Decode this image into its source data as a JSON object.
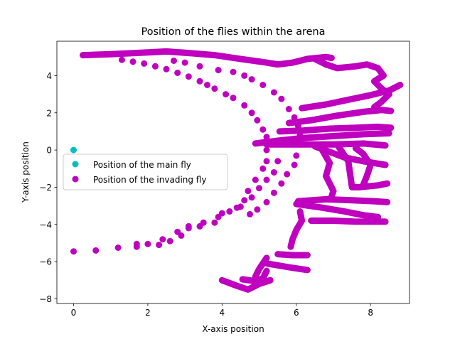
{
  "chart_data": {
    "type": "scatter",
    "title": "Position of the flies within the arena",
    "xlabel": "X-axis position",
    "ylabel": "Y-axis position",
    "xlim": [
      -0.45,
      9.05
    ],
    "ylim": [
      -8.25,
      5.85
    ],
    "xticks": [
      0,
      2,
      4,
      6,
      8
    ],
    "yticks": [
      -8,
      -6,
      -4,
      -2,
      0,
      2,
      4
    ],
    "legend_position": "center-left",
    "grid": false,
    "series": [
      {
        "name": "Position of the main fly",
        "color": "#00bfbf",
        "points": [
          [
            0,
            0
          ]
        ]
      },
      {
        "name": "Position of the invading fly",
        "color": "#bf00bf",
        "paths": [
          [
            [
              0.25,
              5.1
            ],
            [
              1.0,
              5.15
            ],
            [
              2.0,
              5.25
            ],
            [
              2.5,
              5.3
            ],
            [
              3.2,
              5.2
            ],
            [
              3.8,
              5.1
            ],
            [
              4.5,
              4.9
            ],
            [
              5.2,
              4.7
            ],
            [
              5.5,
              4.6
            ],
            [
              5.9,
              4.7
            ],
            [
              6.3,
              4.9
            ],
            [
              6.8,
              5.0
            ],
            [
              6.95,
              4.95
            ]
          ],
          [
            [
              6.5,
              4.9
            ],
            [
              6.8,
              4.6
            ],
            [
              7.1,
              4.4
            ],
            [
              7.6,
              4.5
            ],
            [
              7.9,
              4.6
            ],
            [
              8.2,
              4.4
            ],
            [
              8.35,
              4.0
            ],
            [
              8.1,
              3.7
            ],
            [
              8.3,
              3.3
            ],
            [
              8.5,
              3.0
            ],
            [
              8.3,
              2.6
            ],
            [
              8.1,
              2.3
            ]
          ],
          [
            [
              6.15,
              2.25
            ],
            [
              6.8,
              2.45
            ],
            [
              7.4,
              2.7
            ],
            [
              8.0,
              2.95
            ],
            [
              8.5,
              3.2
            ],
            [
              8.8,
              3.5
            ]
          ],
          [
            [
              5.8,
              1.45
            ],
            [
              6.4,
              1.6
            ],
            [
              7.1,
              1.85
            ],
            [
              7.8,
              2.05
            ],
            [
              8.3,
              2.15
            ],
            [
              8.55,
              2.1
            ]
          ],
          [
            [
              5.55,
              1.0
            ],
            [
              6.2,
              1.05
            ],
            [
              6.9,
              1.15
            ],
            [
              7.6,
              1.2
            ],
            [
              8.2,
              1.25
            ],
            [
              8.55,
              1.2
            ]
          ],
          [
            [
              4.9,
              0.35
            ],
            [
              5.5,
              0.5
            ],
            [
              6.2,
              0.65
            ],
            [
              7.0,
              0.75
            ],
            [
              7.8,
              0.85
            ],
            [
              8.5,
              0.9
            ]
          ],
          [
            [
              5.2,
              0.3
            ],
            [
              6.1,
              0.3
            ],
            [
              7.0,
              0.3
            ],
            [
              7.8,
              0.35
            ],
            [
              8.4,
              0.25
            ]
          ],
          [
            [
              6.5,
              0.2
            ],
            [
              6.9,
              -0.1
            ],
            [
              7.3,
              -0.4
            ],
            [
              7.8,
              -0.6
            ],
            [
              8.4,
              -0.8
            ]
          ],
          [
            [
              6.7,
              0.0
            ],
            [
              6.9,
              -0.7
            ],
            [
              6.8,
              -1.4
            ],
            [
              7.0,
              -2.2
            ],
            [
              6.95,
              -2.5
            ]
          ],
          [
            [
              7.1,
              0.3
            ],
            [
              7.4,
              -0.6
            ],
            [
              7.45,
              -1.3
            ],
            [
              7.5,
              -2.0
            ],
            [
              7.7,
              -2.0
            ],
            [
              8.2,
              -1.9
            ],
            [
              8.45,
              -1.8
            ]
          ],
          [
            [
              7.6,
              0.1
            ],
            [
              7.8,
              -0.2
            ],
            [
              8.0,
              -0.8
            ],
            [
              7.9,
              -1.4
            ],
            [
              7.8,
              -1.9
            ]
          ],
          [
            [
              6.05,
              -2.75
            ],
            [
              6.8,
              -2.65
            ],
            [
              7.5,
              -2.7
            ],
            [
              8.1,
              -2.75
            ],
            [
              8.45,
              -2.8
            ]
          ],
          [
            [
              6.0,
              -2.9
            ],
            [
              6.7,
              -3.1
            ],
            [
              7.3,
              -3.3
            ],
            [
              7.8,
              -3.5
            ],
            [
              8.2,
              -3.6
            ]
          ],
          [
            [
              6.1,
              -3.3
            ],
            [
              6.15,
              -3.8
            ],
            [
              6.0,
              -4.3
            ],
            [
              5.9,
              -4.8
            ],
            [
              5.85,
              -5.2
            ]
          ],
          [
            [
              6.4,
              -3.8
            ],
            [
              7.0,
              -3.8
            ],
            [
              7.6,
              -3.85
            ],
            [
              8.1,
              -3.85
            ],
            [
              8.4,
              -3.85
            ]
          ],
          [
            [
              5.5,
              -5.6
            ],
            [
              5.9,
              -5.65
            ],
            [
              6.3,
              -5.65
            ]
          ],
          [
            [
              5.2,
              -6.1
            ],
            [
              5.8,
              -6.3
            ],
            [
              6.3,
              -6.45
            ]
          ],
          [
            [
              5.2,
              -5.8
            ],
            [
              5.0,
              -6.4
            ],
            [
              4.9,
              -6.8
            ]
          ],
          [
            [
              4.0,
              -7.0
            ],
            [
              4.4,
              -7.3
            ],
            [
              4.7,
              -7.5
            ],
            [
              5.0,
              -7.2
            ],
            [
              5.3,
              -7.0
            ]
          ],
          [
            [
              4.55,
              -6.95
            ],
            [
              4.9,
              -7.05
            ],
            [
              5.1,
              -6.9
            ],
            [
              5.2,
              -6.5
            ]
          ]
        ],
        "points": [
          [
            0,
            -5.45
          ],
          [
            0.6,
            -5.4
          ],
          [
            1.2,
            -5.25
          ],
          [
            1.7,
            -5.2
          ],
          [
            2.0,
            -5.05
          ],
          [
            2.4,
            -4.8
          ],
          [
            2.8,
            -4.4
          ],
          [
            3.1,
            -4.1
          ],
          [
            3.5,
            -3.9
          ],
          [
            3.9,
            -3.6
          ],
          [
            4.2,
            -3.3
          ],
          [
            4.5,
            -3.05
          ],
          [
            4.8,
            -2.55
          ],
          [
            5.0,
            -2.05
          ],
          [
            5.2,
            -1.6
          ],
          [
            5.4,
            -1.2
          ],
          [
            5.5,
            -0.6
          ],
          [
            1.7,
            -5.05
          ],
          [
            2.3,
            -5.1
          ],
          [
            2.6,
            -4.9
          ],
          [
            2.9,
            -4.6
          ],
          [
            3.1,
            -4.2
          ],
          [
            3.4,
            -4.1
          ],
          [
            3.8,
            -3.9
          ],
          [
            4.0,
            -3.4
          ],
          [
            4.4,
            -3.1
          ],
          [
            4.6,
            -2.7
          ],
          [
            4.7,
            -2.2
          ],
          [
            4.9,
            -1.6
          ],
          [
            5.1,
            -1.0
          ],
          [
            5.2,
            -0.6
          ],
          [
            5.2,
            0.0
          ],
          [
            1.3,
            4.85
          ],
          [
            1.6,
            4.75
          ],
          [
            1.9,
            4.65
          ],
          [
            2.2,
            4.5
          ],
          [
            2.5,
            4.35
          ],
          [
            2.8,
            4.15
          ],
          [
            3.1,
            3.95
          ],
          [
            3.4,
            3.7
          ],
          [
            3.6,
            3.5
          ],
          [
            3.8,
            3.3
          ],
          [
            4.1,
            3.0
          ],
          [
            4.3,
            2.8
          ],
          [
            4.6,
            2.4
          ],
          [
            4.8,
            2.0
          ],
          [
            4.95,
            1.6
          ],
          [
            5.1,
            1.1
          ],
          [
            5.2,
            0.7
          ],
          [
            2.7,
            4.8
          ],
          [
            3.0,
            4.7
          ],
          [
            3.4,
            4.5
          ],
          [
            3.9,
            4.3
          ],
          [
            4.3,
            4.2
          ],
          [
            4.6,
            4.0
          ],
          [
            4.8,
            3.8
          ],
          [
            5.1,
            3.5
          ],
          [
            5.4,
            3.1
          ],
          [
            5.6,
            2.75
          ],
          [
            5.8,
            2.2
          ],
          [
            5.95,
            1.75
          ],
          [
            6.05,
            1.3
          ],
          [
            6.1,
            0.8
          ],
          [
            6.1,
            0.3
          ],
          [
            6.0,
            -0.3
          ],
          [
            5.95,
            -0.8
          ],
          [
            5.75,
            -1.3
          ],
          [
            5.6,
            -1.8
          ],
          [
            5.4,
            -2.3
          ],
          [
            5.2,
            -2.8
          ],
          [
            4.95,
            -3.2
          ],
          [
            4.75,
            -3.45
          ]
        ]
      }
    ],
    "legend": [
      {
        "label": "Position of the main fly",
        "color": "#00bfbf"
      },
      {
        "label": "Position of the invading fly",
        "color": "#bf00bf"
      }
    ]
  }
}
